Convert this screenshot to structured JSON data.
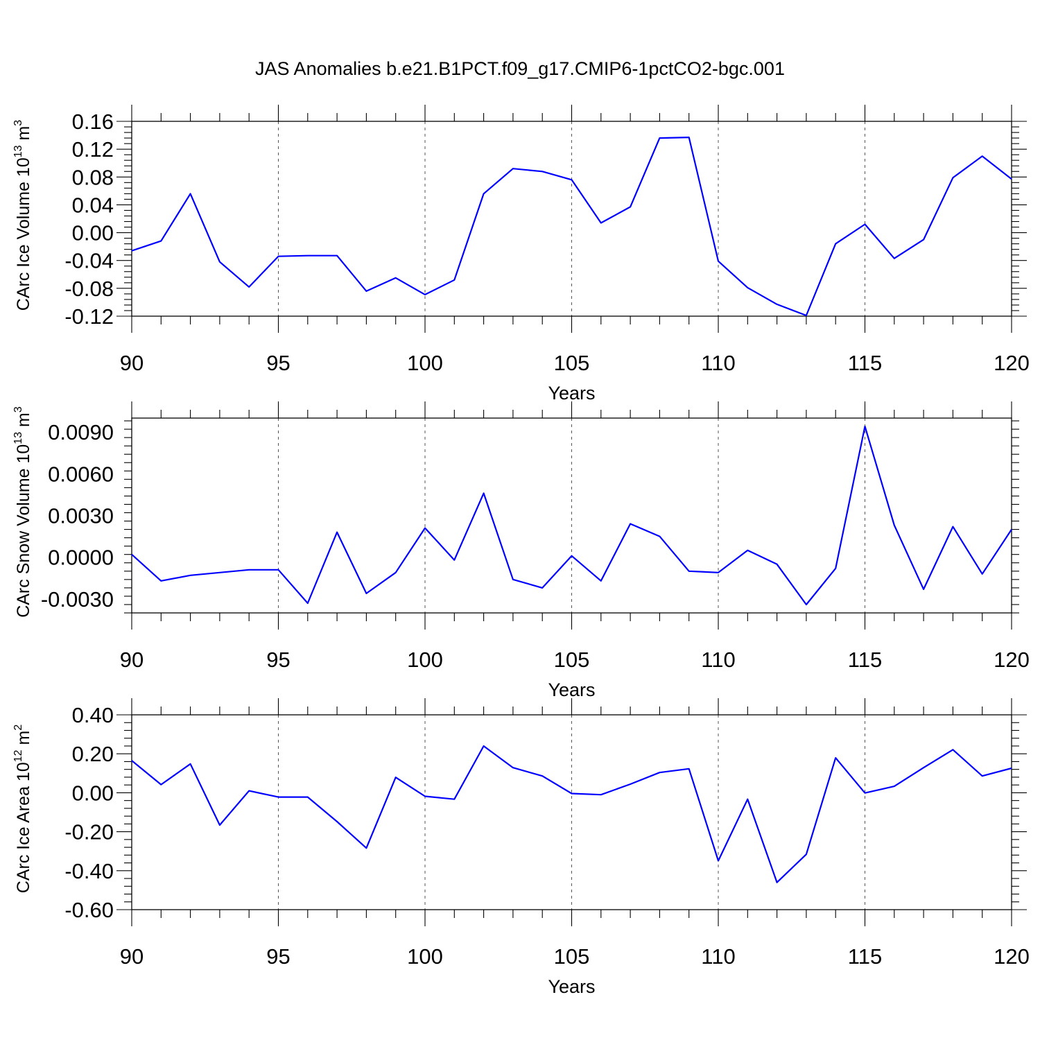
{
  "title": "JAS Anomalies b.e21.B1PCT.f09_g17.CMIP6-1pctCO2-bgc.001",
  "chart_data": [
    {
      "type": "line",
      "xlabel": "Years",
      "ylabel": "CArc Ice Volume 10",
      "ylabel_sup": "13",
      "ylabel_unit": "m",
      "ylabel_unit_sup": "3",
      "xlim": [
        90,
        120
      ],
      "ylim": [
        -0.12,
        0.16
      ],
      "yticks": [
        "0.16",
        "0.12",
        "0.08",
        "0.04",
        "0.00",
        "-0.04",
        "-0.08",
        "-0.12"
      ],
      "ytick_values": [
        0.16,
        0.12,
        0.08,
        0.04,
        0.0,
        -0.04,
        -0.08,
        -0.12
      ],
      "xticks": [
        "90",
        "95",
        "100",
        "105",
        "110",
        "115",
        "120"
      ],
      "xtick_values": [
        90,
        95,
        100,
        105,
        110,
        115,
        120
      ],
      "line_color": "#0000ff",
      "x": [
        90,
        91,
        92,
        93,
        94,
        95,
        96,
        97,
        98,
        99,
        100,
        101,
        102,
        103,
        104,
        105,
        106,
        107,
        108,
        109,
        110,
        111,
        112,
        113,
        114,
        115,
        116,
        117,
        118,
        119,
        120
      ],
      "y": [
        -0.026,
        -0.012,
        0.056,
        -0.042,
        -0.078,
        -0.034,
        -0.033,
        -0.033,
        -0.084,
        -0.065,
        -0.089,
        -0.068,
        0.056,
        0.092,
        0.088,
        0.076,
        0.014,
        0.037,
        0.136,
        0.137,
        -0.041,
        -0.079,
        -0.103,
        -0.119,
        -0.016,
        0.012,
        -0.037,
        -0.01,
        0.079,
        0.11,
        0.077
      ]
    },
    {
      "type": "line",
      "xlabel": "Years",
      "ylabel": "CArc Snow Volume 10",
      "ylabel_sup": "13",
      "ylabel_unit": "m",
      "ylabel_unit_sup": "3",
      "xlim": [
        90,
        120
      ],
      "ylim": [
        -0.004,
        0.01
      ],
      "yticks": [
        "0.0090",
        "0.0060",
        "0.0030",
        "0.0000",
        "-0.0030"
      ],
      "ytick_values": [
        0.009,
        0.006,
        0.003,
        0.0,
        -0.003
      ],
      "xticks": [
        "90",
        "95",
        "100",
        "105",
        "110",
        "115",
        "120"
      ],
      "xtick_values": [
        90,
        95,
        100,
        105,
        110,
        115,
        120
      ],
      "line_color": "#0000ff",
      "x": [
        90,
        91,
        92,
        93,
        94,
        95,
        96,
        97,
        98,
        99,
        100,
        101,
        102,
        103,
        104,
        105,
        106,
        107,
        108,
        109,
        110,
        111,
        112,
        113,
        114,
        115,
        116,
        117,
        118,
        119,
        120
      ],
      "y": [
        0.0002,
        -0.0017,
        -0.0013,
        -0.0011,
        -0.0009,
        -0.0009,
        -0.0033,
        0.0018,
        -0.0026,
        -0.0011,
        0.0021,
        -0.0002,
        0.0046,
        -0.0016,
        -0.0022,
        0.0001,
        -0.0017,
        0.0024,
        0.0015,
        -0.001,
        -0.0011,
        0.0005,
        -0.0005,
        -0.0034,
        -0.0008,
        0.0094,
        0.0023,
        -0.0023,
        0.0022,
        -0.0012,
        0.002
      ]
    },
    {
      "type": "line",
      "xlabel": "Years",
      "ylabel": "CArc Ice Area 10",
      "ylabel_sup": "12",
      "ylabel_unit": "m",
      "ylabel_unit_sup": "2",
      "xlim": [
        90,
        120
      ],
      "ylim": [
        -0.6,
        0.4
      ],
      "yticks": [
        "0.40",
        "0.20",
        "0.00",
        "-0.20",
        "-0.40",
        "-0.60"
      ],
      "ytick_values": [
        0.4,
        0.2,
        0.0,
        -0.2,
        -0.4,
        -0.6
      ],
      "xticks": [
        "90",
        "95",
        "100",
        "105",
        "110",
        "115",
        "120"
      ],
      "xtick_values": [
        90,
        95,
        100,
        105,
        110,
        115,
        120
      ],
      "line_color": "#0000ff",
      "x": [
        90,
        91,
        92,
        93,
        94,
        95,
        96,
        97,
        98,
        99,
        100,
        101,
        102,
        103,
        104,
        105,
        106,
        107,
        108,
        109,
        110,
        111,
        112,
        113,
        114,
        115,
        116,
        117,
        118,
        119,
        120
      ],
      "y": [
        0.165,
        0.042,
        0.148,
        -0.166,
        0.01,
        -0.022,
        -0.022,
        -0.148,
        -0.284,
        0.079,
        -0.018,
        -0.033,
        0.24,
        0.129,
        0.086,
        -0.004,
        -0.01,
        0.044,
        0.104,
        0.123,
        -0.349,
        -0.033,
        -0.46,
        -0.316,
        0.179,
        -0.001,
        0.033,
        0.129,
        0.221,
        0.086,
        0.126
      ]
    }
  ]
}
